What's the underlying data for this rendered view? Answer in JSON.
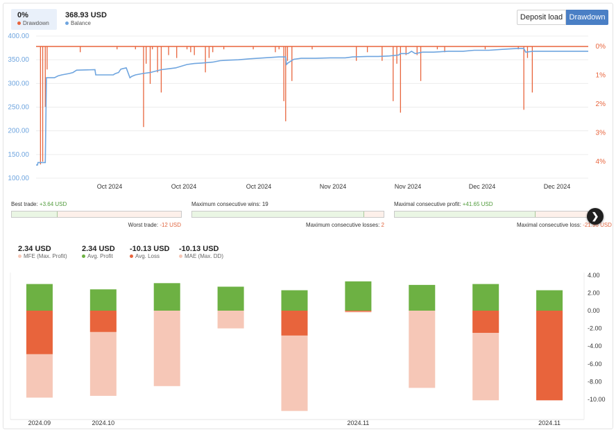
{
  "header": {
    "drawdown_value": "0%",
    "drawdown_label": "Drawdown",
    "balance_value": "368.93 USD",
    "balance_label": "Balance",
    "colors": {
      "drawdown": "#e8643c",
      "balance": "#6fa5df"
    }
  },
  "toggles": {
    "deposit_load": "Deposit load",
    "drawdown": "Drawdown",
    "active": "drawdown"
  },
  "stats": {
    "best_trade_label": "Best trade:",
    "best_trade_value": "+3.64 USD",
    "worst_trade_label": "Worst trade:",
    "worst_trade_value": "-12 USD",
    "max_consec_wins_label": "Maximum consecutive wins:",
    "max_consec_wins_value": "19",
    "max_consec_losses_label": "Maximum consecutive losses:",
    "max_consec_losses_value": "2",
    "max_consec_profit_label": "Maximal consecutive profit:",
    "max_consec_profit_value": "+41.65 USD",
    "max_consec_loss_label": "Maximal consecutive loss:",
    "max_consec_loss_value": "-21.96 USD",
    "best_fraction": 0.27,
    "wins_fraction": 0.9,
    "profit_fraction": 0.73
  },
  "summary": [
    {
      "value": "2.34 USD",
      "label": "MFE (Max. Profit)",
      "color": "#f6c7b7"
    },
    {
      "value": "2.34 USD",
      "label": "Avg. Profit",
      "color": "#6db143"
    },
    {
      "value": "-10.13 USD",
      "label": "Avg. Loss",
      "color": "#e8643c"
    },
    {
      "value": "-10.13 USD",
      "label": "MAE (Max. DD)",
      "color": "#f6c7b7"
    }
  ],
  "chart_data": [
    {
      "type": "line",
      "xticks": [
        "Oct 2024",
        "Oct 2024",
        "Oct 2024",
        "Nov 2024",
        "Nov 2024",
        "Dec 2024",
        "Dec 2024"
      ],
      "y_left_ticks": [
        "400.00",
        "350.00",
        "300.00",
        "250.00",
        "200.00",
        "150.00",
        "100.00"
      ],
      "y_right_ticks": [
        "0%",
        "1%",
        "2%",
        "3%",
        "4%"
      ],
      "ylim_left": [
        100,
        400
      ],
      "ylim_right": [
        0,
        4.5
      ],
      "series": [
        {
          "name": "Balance",
          "color": "#6fa5df",
          "points": [
            [
              0,
              128
            ],
            [
              0.4,
              128
            ],
            [
              0.5,
              133
            ],
            [
              2.5,
              133
            ],
            [
              2.8,
              312
            ],
            [
              5,
              312
            ],
            [
              6,
              316
            ],
            [
              7,
              318
            ],
            [
              9,
              321
            ],
            [
              10,
              323
            ],
            [
              11,
              328
            ],
            [
              16,
              329
            ],
            [
              16.2,
              318
            ],
            [
              21,
              318
            ],
            [
              21.3,
              320
            ],
            [
              22,
              322
            ],
            [
              22.4,
              323
            ],
            [
              23,
              330
            ],
            [
              23.4,
              331
            ],
            [
              24.5,
              333
            ],
            [
              25.5,
              312
            ],
            [
              26,
              315
            ],
            [
              27,
              318
            ],
            [
              29,
              321
            ],
            [
              31,
              323
            ],
            [
              34,
              329
            ],
            [
              36,
              331
            ],
            [
              38,
              333
            ],
            [
              41,
              340
            ],
            [
              43,
              342
            ],
            [
              45,
              343
            ],
            [
              48,
              345
            ],
            [
              50,
              348
            ],
            [
              52,
              349
            ],
            [
              55,
              350
            ],
            [
              58,
              352
            ],
            [
              62,
              354
            ],
            [
              66,
              356
            ],
            [
              67.8,
              356
            ],
            [
              68,
              340
            ],
            [
              68.4,
              343
            ],
            [
              70,
              351
            ],
            [
              72,
              353
            ],
            [
              76,
              353
            ],
            [
              80,
              354
            ],
            [
              84,
              354
            ],
            [
              86,
              356
            ],
            [
              90,
              357
            ],
            [
              93,
              357
            ],
            [
              96,
              358
            ],
            [
              98.5,
              360
            ],
            [
              99,
              363
            ],
            [
              101,
              363
            ],
            [
              102,
              368
            ],
            [
              103,
              363
            ],
            [
              105,
              366
            ],
            [
              108,
              366
            ],
            [
              112,
              368
            ],
            [
              116,
              368
            ],
            [
              119,
              370
            ],
            [
              123,
              370
            ],
            [
              127,
              372
            ],
            [
              129,
              373
            ],
            [
              131,
              374
            ],
            [
              132.5,
              374
            ],
            [
              133,
              366
            ],
            [
              135,
              368
            ],
            [
              140,
              368
            ],
            [
              145,
              368
            ],
            [
              150,
              368
            ]
          ]
        },
        {
          "name": "Drawdown",
          "color": "#e8643c",
          "baseline": 0,
          "spikes": [
            [
              1.2,
              4.1
            ],
            [
              1.8,
              4.0
            ],
            [
              2.5,
              2.1
            ],
            [
              3,
              0.8
            ],
            [
              12,
              0.2
            ],
            [
              22,
              0.1
            ],
            [
              27,
              0.1
            ],
            [
              29.2,
              2.8
            ],
            [
              29.9,
              0.6
            ],
            [
              31,
              1.3
            ],
            [
              31.6,
              0.1
            ],
            [
              33,
              0.9
            ],
            [
              34,
              1.6
            ],
            [
              36,
              0.3
            ],
            [
              38.2,
              0.4
            ],
            [
              41,
              0.1
            ],
            [
              42,
              0.2
            ],
            [
              43,
              0.3
            ],
            [
              46,
              0.9
            ],
            [
              47,
              0.4
            ],
            [
              48,
              0.2
            ],
            [
              51,
              0.1
            ],
            [
              59,
              0.1
            ],
            [
              65,
              0.2
            ],
            [
              66,
              0.1
            ],
            [
              67.3,
              1.9
            ],
            [
              67.8,
              2.6
            ],
            [
              68.3,
              0.5
            ],
            [
              69.5,
              1.2
            ],
            [
              75,
              0.1
            ],
            [
              87,
              0.5
            ],
            [
              90,
              0.2
            ],
            [
              94,
              0.5
            ],
            [
              97,
              1.9
            ],
            [
              98,
              0.6
            ],
            [
              99,
              2.3
            ],
            [
              100.5,
              0.3
            ],
            [
              103.5,
              0.3
            ],
            [
              104.5,
              1.2
            ],
            [
              109,
              0.1
            ],
            [
              111,
              0.2
            ],
            [
              122,
              0.1
            ],
            [
              131,
              0.1
            ],
            [
              132.5,
              2.2
            ],
            [
              133.5,
              0.4
            ],
            [
              134.8,
              1.6
            ]
          ]
        }
      ]
    },
    {
      "type": "bar",
      "categories": [
        "2024.09",
        "2024.10",
        "",
        "",
        "",
        "2024.11",
        "",
        "",
        "2024.11"
      ],
      "yticks": [
        "4.00",
        "2.00",
        "0.00",
        "-2.00",
        "-4.00",
        "-6.00",
        "-8.00",
        "-10.00"
      ],
      "ylim": [
        -11.5,
        4
      ],
      "series": [
        {
          "name": "Avg. Profit",
          "color": "#6db143",
          "values": [
            3.0,
            2.4,
            3.1,
            2.7,
            2.3,
            3.3,
            2.9,
            3.0,
            2.3
          ]
        },
        {
          "name": "Avg. Loss",
          "color": "#e8643c",
          "values": [
            -4.9,
            -2.4,
            0,
            0,
            -2.8,
            -0.1,
            0,
            -2.5,
            -10.1
          ]
        },
        {
          "name": "MAE (Max. DD)",
          "color": "#f6c7b7",
          "values": [
            -9.8,
            -9.6,
            -8.5,
            -2.0,
            -11.3,
            -0.2,
            -8.7,
            -10.1,
            -10.1
          ]
        }
      ]
    }
  ]
}
